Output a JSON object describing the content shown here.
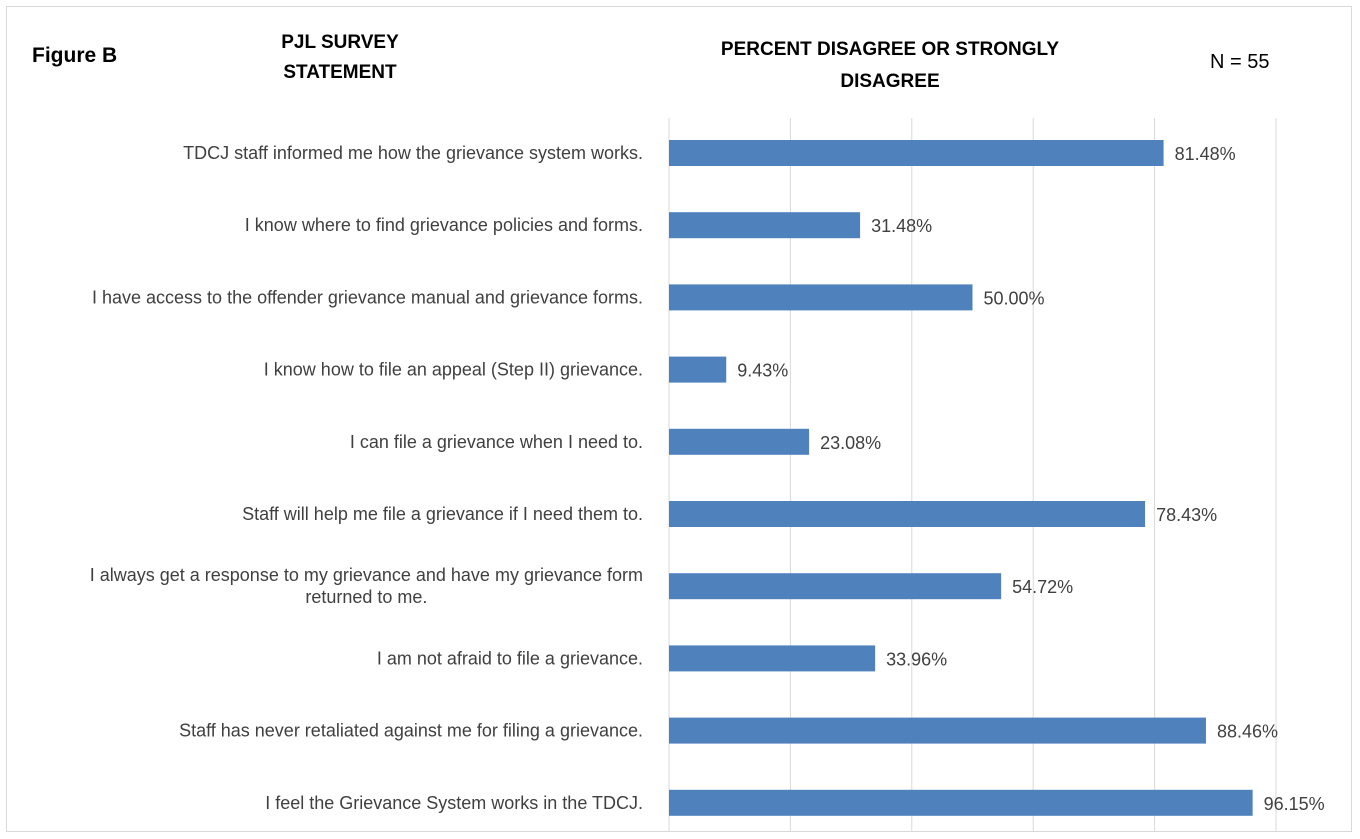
{
  "figure_label": "Figure B",
  "statement_header": "PJL SURVEY STATEMENT",
  "percent_header": "PERCENT DISAGREE OR STRONGLY DISAGREE",
  "n_label": "N = 55",
  "chart_data": {
    "type": "bar",
    "orientation": "horizontal",
    "categories": [
      "TDCJ staff informed me how the grievance system works.",
      "I know where to find grievance policies and forms.",
      "I have access to the offender grievance manual and grievance forms.",
      "I know how to file an appeal (Step II) grievance.",
      "I can file a grievance when I need to.",
      "Staff will help me file a grievance if I need them to.",
      "I always get a response to my grievance and have my grievance form returned to me.",
      "I am not afraid to file a grievance.",
      "Staff has never retaliated against me for filing a grievance.",
      "I feel the Grievance System works in the TDCJ."
    ],
    "values": [
      81.48,
      31.48,
      50.0,
      9.43,
      23.08,
      78.43,
      54.72,
      33.96,
      88.46,
      96.15
    ],
    "value_labels": [
      "81.48%",
      "31.48%",
      "50.00%",
      "9.43%",
      "23.08%",
      "78.43%",
      "54.72%",
      "33.96%",
      "88.46%",
      "96.15%"
    ],
    "xlim": [
      0,
      100
    ],
    "x_gridlines": [
      0,
      20,
      40,
      60,
      80,
      100
    ],
    "grid": true,
    "tick_labels_shown": false,
    "bar_color": "#4f81bd",
    "gridline_color": "#d9d9d9"
  }
}
